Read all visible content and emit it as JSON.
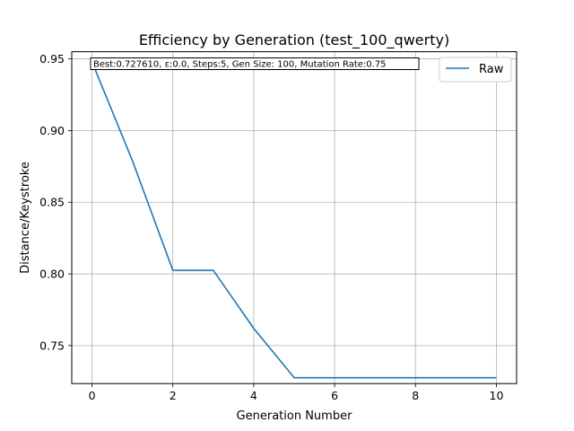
{
  "chart_data": {
    "type": "line",
    "title": "Efficiency by Generation (test_100_qwerty)",
    "xlabel": "Generation Number",
    "ylabel": "Distance/Keystroke",
    "xlim": [
      -0.5,
      10.5
    ],
    "ylim": [
      0.7235,
      0.955
    ],
    "xticks": [
      0,
      2,
      4,
      6,
      8,
      10
    ],
    "yticks": [
      0.75,
      0.8,
      0.85,
      0.9,
      0.95
    ],
    "xtick_labels": [
      "0",
      "2",
      "4",
      "6",
      "8",
      "10"
    ],
    "ytick_labels": [
      "0.75",
      "0.80",
      "0.85",
      "0.90",
      "0.95"
    ],
    "grid": true,
    "legend_position": "top-right",
    "annotation": "Best:0.727610, ε:0.0, Steps:5, Gen Size: 100, Mutation Rate:0.75",
    "series": [
      {
        "name": "Raw",
        "color": "#1f77b4",
        "x": [
          0,
          1,
          2,
          3,
          4,
          5,
          6,
          7,
          8,
          9,
          10
        ],
        "y": [
          0.948,
          0.879,
          0.8025,
          0.8025,
          0.762,
          0.7276,
          0.7276,
          0.7276,
          0.7276,
          0.7276,
          0.7276
        ]
      }
    ]
  }
}
